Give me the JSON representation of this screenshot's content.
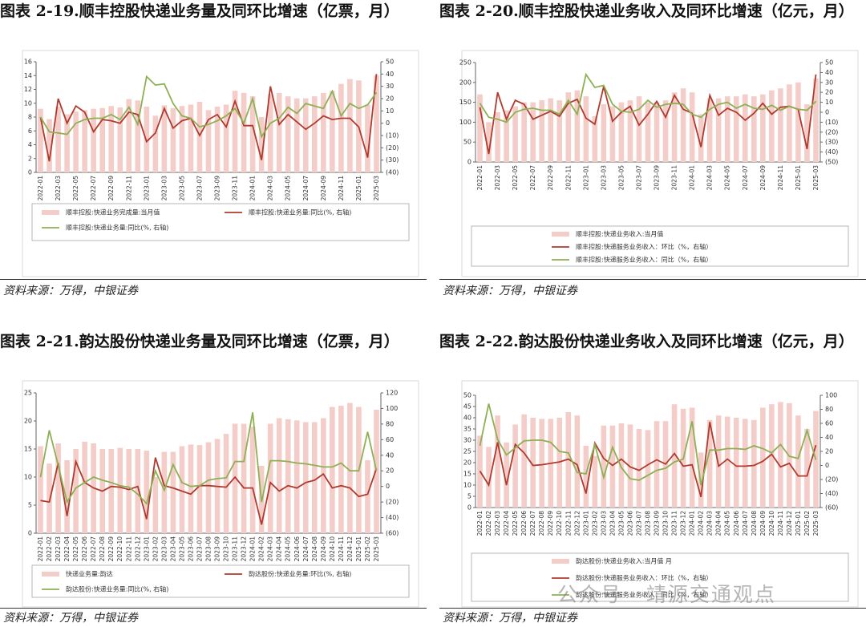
{
  "chart_data": [
    {
      "type": "bar-line",
      "title": "图表 2-19.顺丰控股快递业务量及同环比增速（亿票，月）",
      "source": "资料来源：万得，中银证券",
      "categories": [
        "2022-01",
        null,
        "2022-03",
        null,
        "2022-05",
        null,
        "2022-07",
        null,
        "2022-09",
        null,
        "2022-11",
        null,
        "2023-01",
        null,
        "2023-03",
        null,
        "2023-05",
        null,
        "2023-07",
        null,
        "2023-09",
        null,
        "2023-11",
        null,
        "2024-01",
        null,
        "2024-03",
        null,
        "2024-05",
        null,
        "2024-07",
        null,
        "2024-09",
        null,
        "2024-11",
        null,
        "2025-01",
        null,
        "2025-03"
      ],
      "series": [
        {
          "name": "顺丰控股:快递业务完成量:当月值",
          "type": "bar",
          "color": "#f5cdc8",
          "values": [
            9.2,
            7.7,
            9.5,
            8.4,
            8.8,
            9.0,
            9.2,
            9.3,
            9.6,
            9.4,
            10.6,
            10.4,
            9.5,
            8.2,
            9.7,
            9.3,
            9.6,
            9.8,
            10.2,
            9.0,
            9.5,
            9.8,
            11.8,
            11.5,
            11.0,
            8.0,
            11.3,
            11.5,
            11.0,
            10.7,
            10.7,
            11.0,
            11.5,
            11.8,
            12.8,
            13.5,
            13.3,
            9.8,
            14.0
          ]
        },
        {
          "name": "顺丰控股:快递业务量:同比(%, 右轴)",
          "type": "line",
          "axis": "y2",
          "color": "#b03a2e",
          "values": [
            5,
            -31,
            20,
            0,
            14,
            9,
            -7,
            3,
            2,
            0,
            9,
            7,
            -15,
            -8,
            12,
            -4,
            2,
            4,
            -10,
            3,
            7,
            -3,
            18,
            -2,
            -2,
            -30,
            30,
            -1,
            7,
            1,
            -5,
            0,
            6,
            3,
            4,
            4,
            -3,
            -28,
            40
          ]
        },
        {
          "name": "顺丰控股:快递业务量:同比(%, 右轴)",
          "type": "line",
          "axis": "y2",
          "color": "#8db054",
          "values": [
            5,
            -7,
            -8,
            -9,
            0,
            3,
            4,
            4,
            7,
            3,
            13,
            -1,
            38,
            31,
            32,
            16,
            6,
            4,
            -3,
            -1,
            2,
            6,
            12,
            0,
            20,
            -11,
            0,
            4,
            13,
            8,
            16,
            14,
            12,
            26,
            6,
            16,
            12,
            15,
            25
          ]
        }
      ],
      "ylim": [
        0,
        16
      ],
      "yticks": [
        0,
        2,
        4,
        6,
        8,
        10,
        12,
        14,
        16
      ],
      "y2lim": [
        -40,
        50
      ],
      "y2ticks": [
        {
          "value": -40,
          "label": "(40)"
        },
        {
          "value": -30,
          "label": "(30)"
        },
        {
          "value": -20,
          "label": "(20)"
        },
        {
          "value": -10,
          "label": "(10)"
        },
        0,
        10,
        20,
        30,
        40,
        50
      ]
    },
    {
      "type": "bar-line",
      "title": "图表 2-20.顺丰控股快递业务收入及同环比增速（亿元，月）",
      "source": "资料来源：万得，中银证券",
      "categories": [
        "2022-01",
        null,
        "2022-03",
        null,
        "2022-05",
        null,
        "2022-07",
        null,
        "2022-09",
        null,
        "2022-11",
        null,
        "2023-01",
        null,
        "2023-03",
        null,
        "2023-05",
        null,
        "2023-07",
        null,
        "2023-09",
        null,
        "2023-11",
        null,
        "2024-01",
        null,
        "2024-03",
        null,
        "2024-05",
        null,
        "2024-07",
        null,
        "2024-09",
        null,
        "2024-11",
        null,
        "2025-01",
        null,
        "2025-03"
      ],
      "series": [
        {
          "name": "顺丰控股:快递业务收入:当月值",
          "type": "bar",
          "color": "#f5cdc8",
          "values": [
            170,
            100,
            125,
            130,
            140,
            150,
            150,
            155,
            160,
            155,
            175,
            180,
            165,
            115,
            145,
            140,
            150,
            155,
            165,
            150,
            150,
            155,
            175,
            185,
            175,
            120,
            160,
            160,
            165,
            165,
            170,
            165,
            170,
            180,
            185,
            195,
            200,
            145,
            210
          ]
        },
        {
          "name": "顺丰控股:快递服务业务收入：环比（%，右轴）",
          "type": "line",
          "axis": "y2",
          "color": "#b03a2e",
          "values": [
            5,
            -42,
            20,
            -7,
            12,
            8,
            -7,
            -3,
            1,
            -4,
            9,
            13,
            -6,
            -12,
            26,
            -9,
            0,
            6,
            -13,
            -2,
            11,
            -5,
            17,
            3,
            -1,
            -35,
            17,
            -3,
            4,
            0,
            -8,
            -1,
            9,
            -2,
            5,
            6,
            3,
            -37,
            38
          ]
        },
        {
          "name": "顺丰控股:快递服务业务收入：同比（%，右轴）",
          "type": "line",
          "axis": "y2",
          "color": "#8db054",
          "values": [
            9,
            -5,
            -7,
            -10,
            0,
            3,
            4,
            2,
            2,
            -2,
            12,
            -2,
            38,
            25,
            27,
            8,
            1,
            0,
            3,
            12,
            5,
            8,
            9,
            8,
            -2,
            -5,
            3,
            8,
            10,
            4,
            8,
            4,
            3,
            7,
            2,
            6,
            3,
            2,
            11
          ]
        }
      ],
      "ylim": [
        0,
        250
      ],
      "yticks": [
        0,
        50,
        100,
        150,
        200,
        250
      ],
      "y2lim": [
        -50,
        50
      ],
      "y2ticks": [
        {
          "value": -50,
          "label": "(50)"
        },
        {
          "value": -40,
          "label": "(40)"
        },
        {
          "value": -30,
          "label": "(30)"
        },
        {
          "value": -20,
          "label": "(20)"
        },
        {
          "value": -10,
          "label": "(10)"
        },
        0,
        10,
        20,
        30,
        40,
        50
      ]
    },
    {
      "type": "bar-line",
      "title": "图表 2-21.韵达股份快递业务量及同环比增速（亿票，月）",
      "source": "资料来源：万得，中银证券",
      "categories": [
        "2022-01",
        "2022-02",
        "2022-03",
        "2022-04",
        "2022-05",
        "2022-06",
        "2022-07",
        "2022-08",
        "2022-09",
        "2022-10",
        "2022-11",
        "2022-12",
        "2023-01",
        "2023-02",
        "2023-03",
        "2023-04",
        "2023-05",
        "2023-06",
        "2023-07",
        "2023-08",
        "2023-09",
        "2023-10",
        "2023-11",
        "2023-12",
        "2024-01",
        "2024-02",
        "2024-03",
        "2024-04",
        "2024-05",
        "2024-06",
        "2024-07",
        "2024-08",
        "2024-09",
        "2024-10",
        "2024-11",
        "2024-12",
        "2025-01",
        "2025-02",
        "2025-03"
      ],
      "series": [
        {
          "name": "快递业务量:韵达",
          "type": "bar",
          "color": "#f5cdc8",
          "values": [
            15.5,
            12.4,
            16,
            13,
            15,
            16.3,
            16,
            15,
            15,
            15.2,
            15,
            15,
            14.7,
            10,
            14.5,
            14.5,
            15.5,
            15.8,
            15.7,
            16.2,
            16.8,
            17.7,
            19.5,
            19.5,
            19,
            12,
            19.5,
            20.5,
            20.3,
            20.1,
            19.8,
            19.8,
            20.5,
            22.5,
            22.7,
            23.2,
            22.5,
            13,
            22
          ]
        },
        {
          "name": "韵达股份:快递业务量:环比(%, 右轴)",
          "type": "line",
          "axis": "y2",
          "color": "#b03a2e",
          "values": [
            -18,
            -20,
            30,
            -38,
            32,
            5,
            -2,
            -6,
            0,
            -1,
            -4,
            0,
            -42,
            37,
            1,
            -2,
            -6,
            -10,
            1,
            1,
            0,
            -1,
            12,
            -2,
            -2,
            -49,
            5,
            -6,
            1,
            -2,
            5,
            8,
            16,
            -2,
            1,
            -2,
            -13,
            -10,
            23
          ]
        },
        {
          "name": "韵达股份:快递业务量:同比(%, 右轴)",
          "type": "line",
          "axis": "y2",
          "color": "#8db054",
          "values": [
            12,
            72,
            27,
            -20,
            -2,
            5,
            12,
            8,
            5,
            1,
            -1,
            -10,
            -22,
            20,
            -5,
            28,
            5,
            0,
            1,
            8,
            10,
            11,
            32,
            32,
            95,
            -20,
            33,
            33,
            32,
            30,
            29,
            27,
            25,
            25,
            30,
            20,
            20,
            70,
            20
          ]
        }
      ],
      "ylim": [
        0,
        25
      ],
      "yticks": [
        0,
        5,
        10,
        15,
        20,
        25
      ],
      "y2lim": [
        -60,
        120
      ],
      "y2ticks": [
        {
          "value": -60,
          "label": "(60)"
        },
        {
          "value": -40,
          "label": "(40)"
        },
        {
          "value": -20,
          "label": "(20)"
        },
        0,
        20,
        40,
        60,
        80,
        100,
        120
      ]
    },
    {
      "type": "bar-line",
      "title": "图表 2-22.韵达股份快递业务收入及同环比增速（亿元，月）",
      "source": "资料来源：万得，中银证券",
      "categories": [
        "2022-01",
        "2022-02",
        "2022-03",
        "2022-04",
        "2022-05",
        "2022-06",
        "2022-07",
        "2022-08",
        "2022-09",
        "2022-10",
        "2022-11",
        "2022-12",
        "2023-01",
        "2023-02",
        "2023-03",
        "2023-04",
        "2023-05",
        "2023-06",
        "2023-07",
        "2023-08",
        "2023-09",
        "2023-10",
        "2023-11",
        "2023-12",
        "2024-01",
        "2024-02",
        "2024-03",
        "2024-04",
        "2024-05",
        "2024-06",
        "2024-07",
        "2024-08",
        "2024-09",
        "2024-10",
        "2024-11",
        "2024-12",
        "2025-01",
        "2025-02",
        "2025-03"
      ],
      "series": [
        {
          "name": "韵达股份:快递业务收入:当月值 月",
          "type": "bar",
          "color": "#f5cdc8",
          "values": [
            32,
            27,
            41,
            29,
            37,
            41.5,
            40,
            39.5,
            39.5,
            40,
            42.5,
            41,
            27.5,
            23,
            36.5,
            36.5,
            37.5,
            37,
            35,
            34.5,
            38.5,
            38.5,
            46,
            44,
            44.5,
            24.5,
            39,
            41,
            40.5,
            40,
            39.5,
            39,
            44.5,
            46,
            47,
            46.5,
            41,
            35,
            43
          ]
        },
        {
          "name": "韵达股份:快递服务业务收入：环比（%，右轴）",
          "type": "line",
          "axis": "y2",
          "color": "#b03a2e",
          "values": [
            -8,
            -28,
            33,
            -28,
            30,
            18,
            0,
            1,
            3,
            5,
            9,
            1,
            -40,
            32,
            10,
            0,
            9,
            -2,
            -7,
            1,
            8,
            2,
            17,
            -1,
            1,
            -45,
            62,
            -1,
            9,
            -1,
            -1,
            0,
            6,
            16,
            -2,
            3,
            -15,
            -15,
            29
          ]
        },
        {
          "name": "韵达股份:快递服务业务收入：同比（%，右轴）",
          "type": "line",
          "axis": "y2",
          "color": "#8db054",
          "values": [
            28,
            88,
            37,
            15,
            25,
            35,
            36,
            36,
            33,
            20,
            18,
            -10,
            -12,
            30,
            -17,
            26,
            -3,
            -19,
            -21,
            -14,
            -7,
            -4,
            5,
            9,
            63,
            -28,
            22,
            22,
            24,
            24,
            23,
            28,
            24,
            18,
            30,
            13,
            10,
            50,
            8
          ]
        }
      ],
      "ylim": [
        0,
        50
      ],
      "yticks": [
        0,
        5,
        10,
        15,
        20,
        25,
        30,
        35,
        40,
        45,
        50
      ],
      "y2lim": [
        -60,
        100
      ],
      "y2ticks": [
        {
          "value": -60,
          "label": "(60)"
        },
        {
          "value": -40,
          "label": "(40)"
        },
        {
          "value": -20,
          "label": "(20)"
        },
        0,
        20,
        40,
        60,
        80,
        100
      ]
    }
  ],
  "watermark": "公众号 · 靖源交通观点"
}
